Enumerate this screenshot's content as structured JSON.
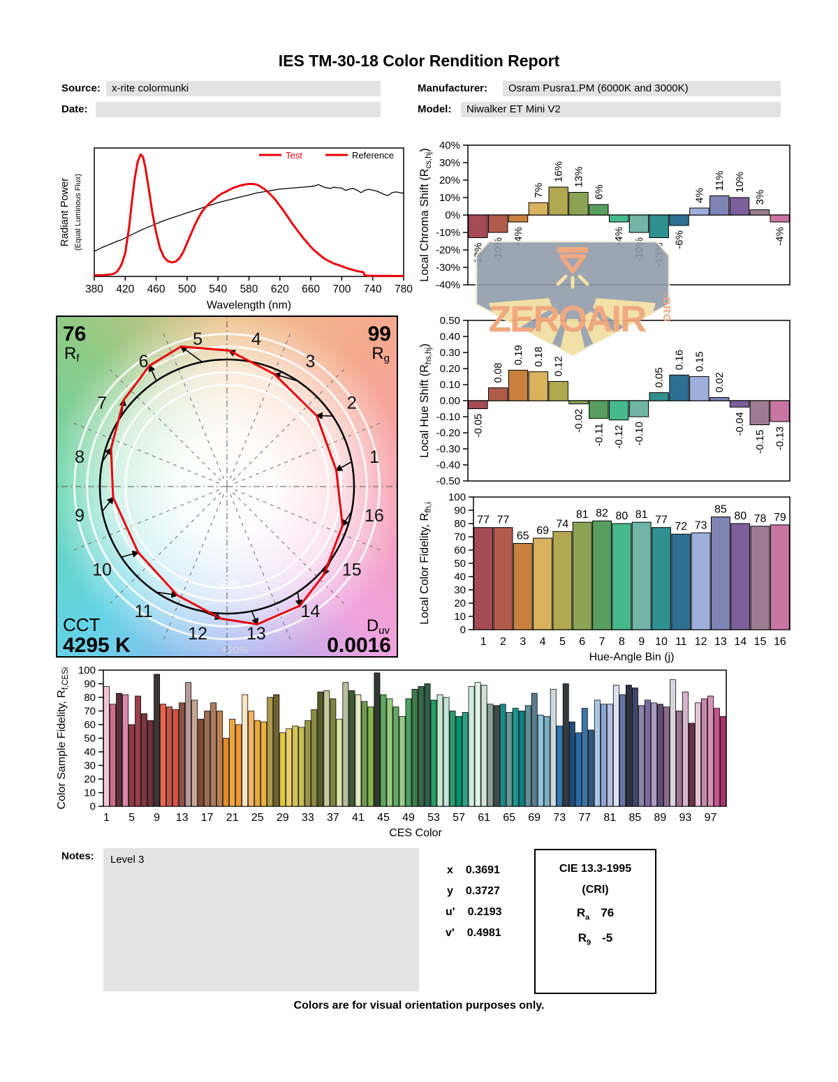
{
  "report": {
    "title": "IES TM-30-18 Color Rendition Report",
    "fields": {
      "source_label": "Source:",
      "source_value": "x-rite colormunki",
      "date_label": "Date:",
      "date_value": "",
      "manufacturer_label": "Manufacturer:",
      "manufacturer_value": "Osram Pusra1.PM (6000K and 3000K)",
      "model_label": "Model:",
      "model_value": "Niwalker ET Mini V2"
    },
    "notes_label": "Notes:",
    "notes_value": "Level 3",
    "footer": "Colors are for visual orientation purposes only."
  },
  "chromaticity": {
    "rows": [
      {
        "label": "x",
        "value": "0.3691"
      },
      {
        "label": "y",
        "value": "0.3727"
      },
      {
        "label": "u'",
        "value": "0.2193"
      },
      {
        "label": "v'",
        "value": "0.4981"
      }
    ]
  },
  "cri": {
    "title": "CIE 13.3-1995",
    "subtitle": "(CRI)",
    "ra": {
      "pre": "R",
      "sub": "a",
      "value": "76"
    },
    "r9": {
      "pre": "R",
      "sub": "9",
      "value": "-5"
    }
  },
  "watermark": {
    "text": "ZEROAIR",
    "org": ".ORG"
  },
  "cvg": {
    "rf_value": "76",
    "rf": {
      "pre": "R",
      "sub": "f"
    },
    "rg_value": "99",
    "rg": {
      "pre": "R",
      "sub": "g"
    },
    "cct_label": "CCT",
    "cct_value": "4295 K",
    "duv": {
      "pre": "D",
      "sub": "uv"
    },
    "duv_value": "0.0016",
    "ring_outer": "+20%",
    "ring_inner": "-20%",
    "bin_numbers": [
      "1",
      "2",
      "3",
      "4",
      "5",
      "6",
      "7",
      "8",
      "9",
      "10",
      "11",
      "12",
      "13",
      "14",
      "15",
      "16"
    ]
  },
  "hue_bin_colors": [
    "#a34b56",
    "#b15b4c",
    "#c98140",
    "#d9b25f",
    "#b1a851",
    "#8ca355",
    "#589e5e",
    "#46b98d",
    "#70b5a5",
    "#2f9090",
    "#2f6f94",
    "#9fafdc",
    "#7e84b4",
    "#7c5f9b",
    "#9d7c93",
    "#c975a2"
  ],
  "chart_data": [
    {
      "id": "spd",
      "type": "line",
      "xlabel": "Wavelength (nm)",
      "ylabel_line1": "Radiant Power",
      "ylabel_line2": "(Equal Luminous Flux)",
      "xlim": [
        380,
        780
      ],
      "ylim": [
        0,
        1
      ],
      "x_ticks": [
        380,
        420,
        460,
        500,
        540,
        580,
        620,
        660,
        700,
        740,
        780
      ],
      "legend": [
        {
          "label": "Test",
          "label_color": "#e8000b",
          "line_color": "#e8000b"
        },
        {
          "label": "Reference",
          "label_color": "#000000",
          "line_color": "#e8000b"
        }
      ],
      "series": [
        {
          "name": "Reference",
          "color": "#000000",
          "width": 1.3,
          "points": [
            [
              380,
              0.195
            ],
            [
              390,
              0.225
            ],
            [
              400,
              0.25
            ],
            [
              410,
              0.275
            ],
            [
              415,
              0.285
            ],
            [
              420,
              0.3
            ],
            [
              425,
              0.315
            ],
            [
              430,
              0.33
            ],
            [
              440,
              0.36
            ],
            [
              450,
              0.385
            ],
            [
              460,
              0.41
            ],
            [
              470,
              0.435
            ],
            [
              480,
              0.455
            ],
            [
              490,
              0.475
            ],
            [
              500,
              0.495
            ],
            [
              510,
              0.515
            ],
            [
              520,
              0.535
            ],
            [
              530,
              0.555
            ],
            [
              540,
              0.575
            ],
            [
              550,
              0.59
            ],
            [
              560,
              0.605
            ],
            [
              570,
              0.62
            ],
            [
              580,
              0.635
            ],
            [
              590,
              0.65
            ],
            [
              600,
              0.66
            ],
            [
              610,
              0.67
            ],
            [
              620,
              0.68
            ],
            [
              630,
              0.685
            ],
            [
              640,
              0.69
            ],
            [
              650,
              0.695
            ],
            [
              660,
              0.7
            ],
            [
              665,
              0.705
            ],
            [
              670,
              0.715
            ],
            [
              675,
              0.7
            ],
            [
              680,
              0.69
            ],
            [
              685,
              0.685
            ],
            [
              690,
              0.695
            ],
            [
              695,
              0.69
            ],
            [
              700,
              0.688
            ],
            [
              705,
              0.67
            ],
            [
              710,
              0.68
            ],
            [
              715,
              0.685
            ],
            [
              720,
              0.67
            ],
            [
              725,
              0.652
            ],
            [
              730,
              0.672
            ],
            [
              735,
              0.678
            ],
            [
              740,
              0.672
            ],
            [
              745,
              0.665
            ],
            [
              750,
              0.652
            ],
            [
              755,
              0.638
            ],
            [
              760,
              0.63
            ],
            [
              765,
              0.652
            ],
            [
              770,
              0.658
            ],
            [
              775,
              0.652
            ],
            [
              780,
              0.648
            ]
          ]
        },
        {
          "name": "Test",
          "color": "#e8000b",
          "width": 3,
          "points": [
            [
              380,
              0.01
            ],
            [
              390,
              0.01
            ],
            [
              400,
              0.015
            ],
            [
              405,
              0.02
            ],
            [
              410,
              0.04
            ],
            [
              415,
              0.09
            ],
            [
              420,
              0.18
            ],
            [
              425,
              0.38
            ],
            [
              428,
              0.55
            ],
            [
              432,
              0.75
            ],
            [
              436,
              0.89
            ],
            [
              440,
              0.95
            ],
            [
              443,
              0.93
            ],
            [
              446,
              0.85
            ],
            [
              450,
              0.7
            ],
            [
              455,
              0.5
            ],
            [
              460,
              0.34
            ],
            [
              465,
              0.22
            ],
            [
              470,
              0.15
            ],
            [
              475,
              0.12
            ],
            [
              480,
              0.11
            ],
            [
              485,
              0.115
            ],
            [
              490,
              0.14
            ],
            [
              495,
              0.19
            ],
            [
              500,
              0.26
            ],
            [
              505,
              0.33
            ],
            [
              510,
              0.4
            ],
            [
              515,
              0.46
            ],
            [
              520,
              0.51
            ],
            [
              525,
              0.545
            ],
            [
              530,
              0.575
            ],
            [
              535,
              0.6
            ],
            [
              540,
              0.625
            ],
            [
              545,
              0.645
            ],
            [
              550,
              0.66
            ],
            [
              555,
              0.675
            ],
            [
              560,
              0.69
            ],
            [
              565,
              0.7
            ],
            [
              570,
              0.71
            ],
            [
              575,
              0.715
            ],
            [
              580,
              0.72
            ],
            [
              585,
              0.72
            ],
            [
              590,
              0.715
            ],
            [
              595,
              0.7
            ],
            [
              600,
              0.68
            ],
            [
              605,
              0.655
            ],
            [
              610,
              0.625
            ],
            [
              615,
              0.59
            ],
            [
              620,
              0.55
            ],
            [
              625,
              0.51
            ],
            [
              630,
              0.465
            ],
            [
              635,
              0.42
            ],
            [
              640,
              0.38
            ],
            [
              645,
              0.34
            ],
            [
              650,
              0.3
            ],
            [
              655,
              0.265
            ],
            [
              660,
              0.23
            ],
            [
              665,
              0.2
            ],
            [
              670,
              0.175
            ],
            [
              675,
              0.15
            ],
            [
              680,
              0.13
            ],
            [
              685,
              0.115
            ],
            [
              690,
              0.1
            ],
            [
              695,
              0.09
            ],
            [
              700,
              0.08
            ],
            [
              705,
              0.068
            ],
            [
              710,
              0.058
            ],
            [
              715,
              0.05
            ],
            [
              720,
              0.042
            ],
            [
              725,
              0.036
            ],
            [
              728,
              0.032
            ],
            [
              730,
              0.008
            ],
            [
              735,
              0.006
            ],
            [
              740,
              0.005
            ],
            [
              750,
              0.004
            ],
            [
              760,
              0.004
            ],
            [
              770,
              0.003
            ],
            [
              780,
              0.003
            ]
          ]
        }
      ]
    },
    {
      "id": "chroma",
      "type": "bar",
      "ylabel_pre": "Local Chroma Shift (R",
      "ylabel_sub": "cs,hj",
      "ylabel_post": ")",
      "ylim": [
        -40,
        40
      ],
      "ytick_step": 10,
      "ytick_suffix": "%",
      "categories": [
        1,
        2,
        3,
        4,
        5,
        6,
        7,
        8,
        9,
        10,
        11,
        12,
        13,
        14,
        15,
        16
      ],
      "values": [
        -13,
        -10,
        -4,
        7,
        16,
        13,
        6,
        -4,
        -10,
        -13,
        -6,
        4,
        11,
        10,
        3,
        -4
      ],
      "labels": [
        "-13%",
        "-10%",
        "-4%",
        "7%",
        "16%",
        "13%",
        "6%",
        "-4%",
        "-10%",
        "-13%",
        "-6%",
        "4%",
        "11%",
        "10%",
        "3%",
        "-4%"
      ]
    },
    {
      "id": "hue",
      "type": "bar",
      "ylabel_pre": "Local Hue Shift (R",
      "ylabel_sub": "hs,hj",
      "ylabel_post": ")",
      "ylim": [
        -0.5,
        0.5
      ],
      "ytick_step": 0.1,
      "categories": [
        1,
        2,
        3,
        4,
        5,
        6,
        7,
        8,
        9,
        10,
        11,
        12,
        13,
        14,
        15,
        16
      ],
      "values": [
        -0.05,
        0.08,
        0.19,
        0.18,
        0.12,
        -0.02,
        -0.11,
        -0.12,
        -0.1,
        0.05,
        0.16,
        0.15,
        0.02,
        -0.04,
        -0.15,
        -0.13
      ],
      "labels": [
        "-0.05",
        "0.08",
        "0.19",
        "0.18",
        "0.12",
        "-0.02",
        "-0.11",
        "-0.12",
        "-0.10",
        "0.05",
        "0.16",
        "0.15",
        "0.02",
        "-0.04",
        "-0.15",
        "-0.13"
      ]
    },
    {
      "id": "fidelity",
      "type": "bar",
      "ylabel_pre": "Local Color Fidelity, R",
      "ylabel_sub": "fh,i",
      "ylabel_post": "",
      "xlabel": "Hue-Angle Bin (j)",
      "ylim": [
        0,
        100
      ],
      "ytick_step": 10,
      "categories": [
        1,
        2,
        3,
        4,
        5,
        6,
        7,
        8,
        9,
        10,
        11,
        12,
        13,
        14,
        15,
        16
      ],
      "values": [
        77,
        77,
        65,
        69,
        74,
        81,
        82,
        80,
        81,
        77,
        72,
        73,
        85,
        80,
        78,
        79
      ],
      "labels": [
        "77",
        "77",
        "65",
        "69",
        "74",
        "81",
        "82",
        "80",
        "81",
        "77",
        "72",
        "73",
        "85",
        "80",
        "78",
        "79"
      ]
    },
    {
      "id": "ces",
      "type": "bar",
      "ylabel_pre": "Color Sample Fidelity, R",
      "ylabel_sub": "f,CESi",
      "ylabel_post": "",
      "xlabel": "CES Color",
      "ylim": [
        0,
        100
      ],
      "ytick_step": 10,
      "xtick_every": 4,
      "x_tick_labels": [
        1,
        5,
        9,
        13,
        17,
        21,
        25,
        29,
        33,
        37,
        41,
        45,
        49,
        53,
        57,
        61,
        65,
        69,
        73,
        77,
        81,
        85,
        89,
        93,
        97
      ],
      "values": [
        88,
        75,
        83,
        82,
        60,
        81,
        68,
        63,
        97,
        75,
        73,
        71,
        76,
        91,
        78,
        64,
        70,
        76,
        70,
        50,
        64,
        60,
        82,
        70,
        63,
        62,
        80,
        82,
        54,
        57,
        59,
        58,
        63,
        71,
        84,
        85,
        79,
        64,
        91,
        85,
        82,
        77,
        73,
        98,
        82,
        79,
        73,
        66,
        79,
        86,
        88,
        90,
        78,
        82,
        80,
        70,
        66,
        69,
        88,
        91,
        89,
        75,
        74,
        75,
        69,
        72,
        70,
        74,
        83,
        67,
        66,
        86,
        59,
        90,
        62,
        54,
        72,
        56,
        78,
        75,
        75,
        89,
        82,
        89,
        87,
        74,
        78,
        76,
        75,
        73,
        93,
        70,
        84,
        61,
        76,
        79,
        81,
        72,
        66
      ],
      "colors": [
        "#f3c6d3",
        "#cc6f8e",
        "#5f3139",
        "#da88aa",
        "#8f3a45",
        "#98404f",
        "#7f3841",
        "#6f3039",
        "#3a3537",
        "#e9654f",
        "#c15649",
        "#da5044",
        "#8b5345",
        "#b59b97",
        "#c5a592",
        "#7f4b35",
        "#9b6c53",
        "#ac7b5f",
        "#ba8051",
        "#e18b29",
        "#f1a741",
        "#ee9931",
        "#f6e4c3",
        "#f3b569",
        "#e9a939",
        "#ecaf3d",
        "#ac9b49",
        "#6f6331",
        "#e4c741",
        "#ead369",
        "#d5c35d",
        "#cabd51",
        "#9b954b",
        "#8b8d3f",
        "#56592b",
        "#c6c99b",
        "#7e8541",
        "#dee5a9",
        "#b5bd9d",
        "#405b36",
        "#e4e9c3",
        "#6b9b51",
        "#8bb54f",
        "#303b2f",
        "#5ba95d",
        "#9bcd7f",
        "#63a967",
        "#9dc988",
        "#4aa161",
        "#3f7b4b",
        "#36694b",
        "#2f5f47",
        "#269b69",
        "#c9e9d3",
        "#c0e5d5",
        "#309b6b",
        "#00946f",
        "#31a185",
        "#d3ede1",
        "#e1f3e9",
        "#d0e1d5",
        "#8ba397",
        "#404b49",
        "#1b8b85",
        "#6b9b95",
        "#18958f",
        "#107f81",
        "#5f9399",
        "#5b7b8f",
        "#8fc5dd",
        "#7bafc5",
        "#cdd9dd",
        "#307bb5",
        "#34393d",
        "#1f4b79",
        "#2b6ba9",
        "#3b75a5",
        "#33577d",
        "#abc5e5",
        "#8ba5d5",
        "#b5bde1",
        "#dde1f1",
        "#6b75a9",
        "#2f3341",
        "#3f4569",
        "#8b85a9",
        "#7b6b9f",
        "#a99dc5",
        "#5f4b75",
        "#8b6b8b",
        "#d9d5dd",
        "#9b7591",
        "#d5b5c9",
        "#6b3149",
        "#e5c5d5",
        "#c589a9",
        "#d591b5",
        "#c5558d",
        "#a93569"
      ]
    }
  ]
}
